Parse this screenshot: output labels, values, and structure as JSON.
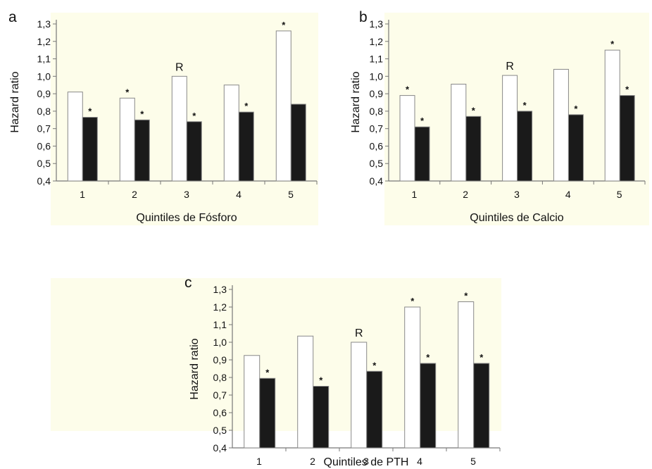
{
  "chart_data": [
    {
      "panel": "a",
      "type": "bar",
      "xlabel": "Quintiles de Fósforo",
      "ylabel": "Hazard ratio",
      "ylim": [
        0.4,
        1.3
      ],
      "yticks": [
        "0,4",
        "0,5",
        "0,6",
        "0,7",
        "0,8",
        "0,9",
        "1,0",
        "1,1",
        "1,2",
        "1,3"
      ],
      "categories": [
        "1",
        "2",
        "3",
        "4",
        "5"
      ],
      "background": "#fdfdea",
      "series": [
        {
          "fill": "#ffffff",
          "values": [
            0.91,
            0.875,
            1.0,
            0.95,
            1.26
          ],
          "annotations": [
            "",
            "*",
            "R",
            "",
            "*"
          ]
        },
        {
          "fill": "#1a1a1a",
          "values": [
            0.765,
            0.75,
            0.74,
            0.795,
            0.84
          ],
          "annotations": [
            "*",
            "*",
            "*",
            "*",
            ""
          ]
        }
      ]
    },
    {
      "panel": "b",
      "type": "bar",
      "xlabel": "Quintiles de Calcio",
      "ylabel": "Hazard ratio",
      "ylim": [
        0.4,
        1.3
      ],
      "yticks": [
        "0,4",
        "0,5",
        "0,6",
        "0,7",
        "0,8",
        "0,9",
        "1,0",
        "1,1",
        "1,2",
        "1,3"
      ],
      "categories": [
        "1",
        "2",
        "3",
        "4",
        "5"
      ],
      "background": "#fdfdea",
      "series": [
        {
          "fill": "#ffffff",
          "values": [
            0.89,
            0.955,
            1.005,
            1.04,
            1.15
          ],
          "annotations": [
            "*",
            "",
            "R",
            "",
            "*"
          ]
        },
        {
          "fill": "#1a1a1a",
          "values": [
            0.71,
            0.77,
            0.8,
            0.78,
            0.89
          ],
          "annotations": [
            "*",
            "*",
            "*",
            "*",
            "*"
          ]
        }
      ]
    },
    {
      "panel": "c",
      "type": "bar",
      "xlabel": "Quintiles de PTH",
      "ylabel": "Hazard ratio",
      "ylim": [
        0.4,
        1.3
      ],
      "yticks": [
        "0,4",
        "0,5",
        "0,6",
        "0,7",
        "0,8",
        "0,9",
        "1,0",
        "1,1",
        "1,2",
        "1,3"
      ],
      "categories": [
        "1",
        "2",
        "3",
        "4",
        "5"
      ],
      "background": "#fdfdea",
      "series": [
        {
          "fill": "#ffffff",
          "values": [
            0.925,
            1.035,
            1.0,
            1.2,
            1.23
          ],
          "annotations": [
            "",
            "",
            "R",
            "*",
            "*"
          ]
        },
        {
          "fill": "#1a1a1a",
          "values": [
            0.795,
            0.75,
            0.835,
            0.88,
            0.88
          ],
          "annotations": [
            "*",
            "*",
            "*",
            "*",
            "*"
          ]
        }
      ]
    }
  ]
}
